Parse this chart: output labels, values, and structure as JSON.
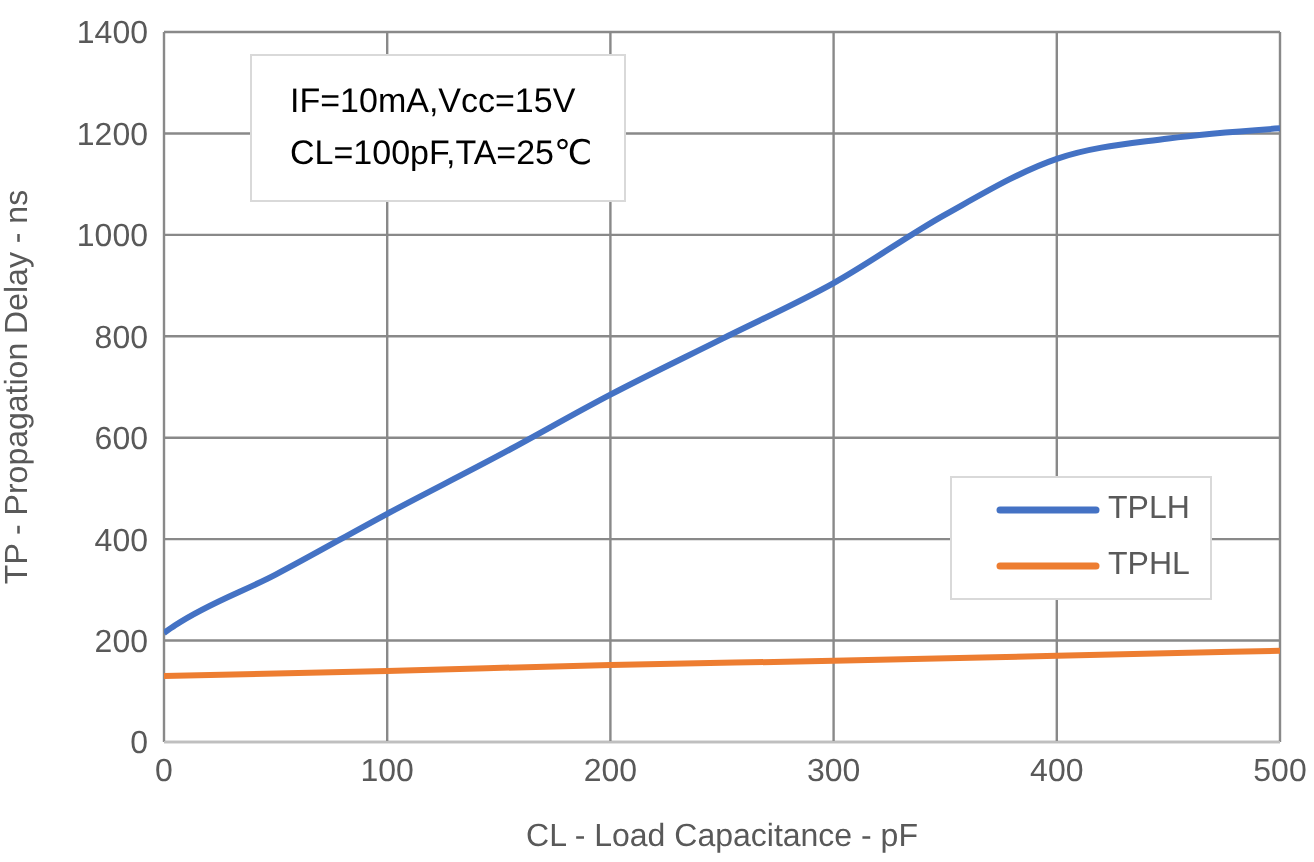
{
  "chart_data": {
    "type": "line",
    "xlabel": "CL - Load Capacitance - pF",
    "ylabel": "TP - Propagation Delay - ns",
    "annotations": [
      "IF=10mA,Vcc=15V",
      "CL=100pF,TA=25℃"
    ],
    "x": [
      0,
      5,
      50,
      100,
      150,
      200,
      250,
      300,
      350,
      400,
      450,
      500
    ],
    "series": [
      {
        "name": "TPLH",
        "color": "#4472c4",
        "values": [
          215,
          230,
          330,
          450,
          565,
          685,
          795,
          905,
          1040,
          1150,
          1190,
          1210
        ]
      },
      {
        "name": "TPHL",
        "color": "#ed7d31",
        "x": [
          0,
          100,
          200,
          300,
          400,
          500
        ],
        "values": [
          130,
          140,
          152,
          160,
          170,
          180
        ]
      }
    ],
    "xlim": [
      0,
      500
    ],
    "xticks": [
      0,
      100,
      200,
      300,
      400,
      500
    ],
    "ylim": [
      0,
      1400
    ],
    "yticks": [
      0,
      200,
      400,
      600,
      800,
      1000,
      1200,
      1400
    ],
    "grid": true,
    "legend": "right",
    "marker": "none",
    "line_style": "solid"
  }
}
